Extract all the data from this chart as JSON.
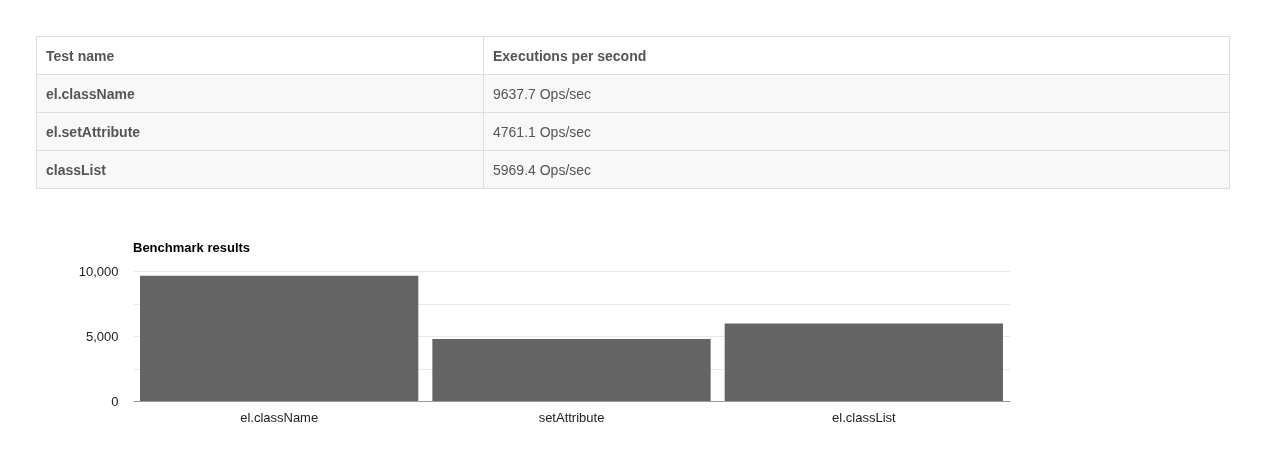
{
  "chart_data": [
    {
      "type": "other",
      "annotations": [
        "Test name",
        "Executions per second"
      ],
      "categories": [
        "el.className",
        "el.setAttribute",
        "classList"
      ],
      "values": [
        9637.7,
        4761.1,
        5969.4
      ],
      "value_labels": [
        "9637.7 Ops/sec",
        "4761.1 Ops/sec",
        "5969.4 Ops/sec"
      ]
    },
    {
      "type": "bar",
      "title": "Benchmark results",
      "categories": [
        "el.className",
        "setAttribute",
        "el.classList"
      ],
      "values": [
        9637.7,
        4761.1,
        5969.4
      ],
      "color": "#646464",
      "ylim": [
        0,
        10000
      ],
      "yticks": [
        0,
        {
          "value": 2500,
          "label": null
        },
        {
          "value": 5000,
          "label": "5,000"
        },
        {
          "value": 7500,
          "label": null
        },
        {
          "value": 10000,
          "label": "10,000"
        }
      ],
      "grid": "y"
    }
  ]
}
